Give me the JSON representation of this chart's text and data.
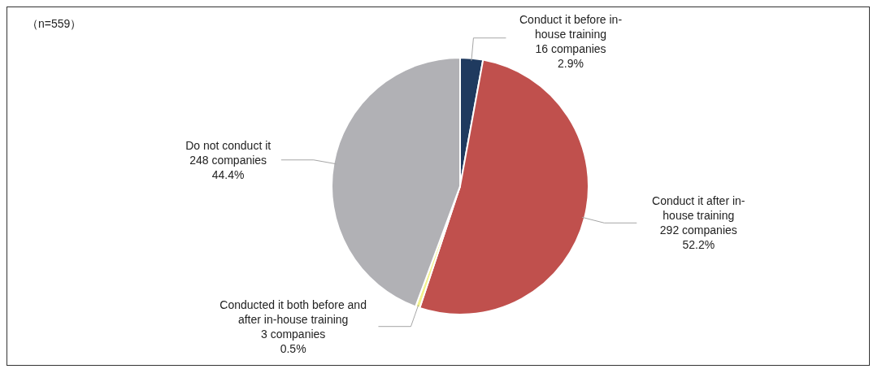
{
  "chart_data": {
    "type": "pie",
    "annotations": [
      "（n=559）"
    ],
    "categories": [
      "Conduct it before in-house training",
      "Conduct it after in-house training",
      "Conducted it both before and after in-house training",
      "Do not conduct it"
    ],
    "values": [
      16,
      292,
      3,
      248
    ],
    "value_labels": [
      "16 companies\n2.9%",
      "292 companies\n52.2%",
      "3 companies\n0.5%",
      "248 companies\n44.4%"
    ],
    "colors": [
      "#1f3a5f",
      "#c0504d",
      "#f2f28c",
      "#b1b1b5"
    ],
    "legend": false
  }
}
